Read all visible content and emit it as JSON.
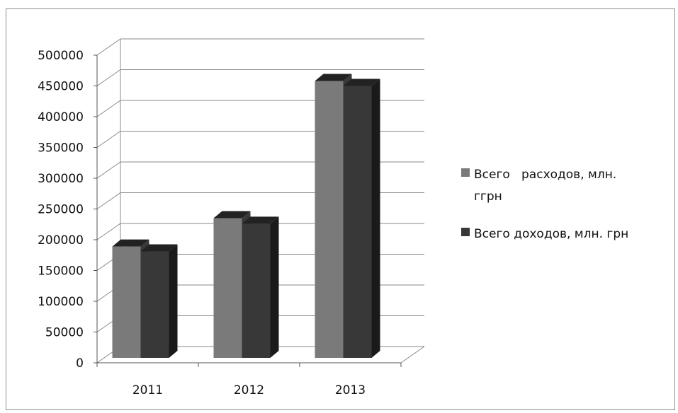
{
  "chart_data": {
    "type": "bar",
    "categories": [
      "2011",
      "2012",
      "2013"
    ],
    "series": [
      {
        "name": "Всего расходов, млн. ггрн",
        "values": [
          189000,
          235000,
          458000
        ],
        "color": "#7a7a7a"
      },
      {
        "name": "Всего доходов, млн. грн",
        "values": [
          181000,
          226000,
          450000
        ],
        "color": "#383838"
      }
    ],
    "ylim": [
      0,
      500000
    ],
    "y_ticks": [
      "0",
      "50000",
      "100000",
      "150000",
      "200000",
      "250000",
      "300000",
      "350000",
      "400000",
      "450000",
      "500000"
    ],
    "grid": true,
    "legend": {
      "placement": "right",
      "entries": [
        {
          "lines": [
            "Всего   расходов, млн.",
            "ггрн"
          ]
        },
        {
          "lines": [
            "Всего доходов, млн. грн"
          ]
        }
      ]
    }
  },
  "colors": {
    "grid": "#8a8a8a",
    "axis": "#555555",
    "floor": "#8a8a8a"
  }
}
